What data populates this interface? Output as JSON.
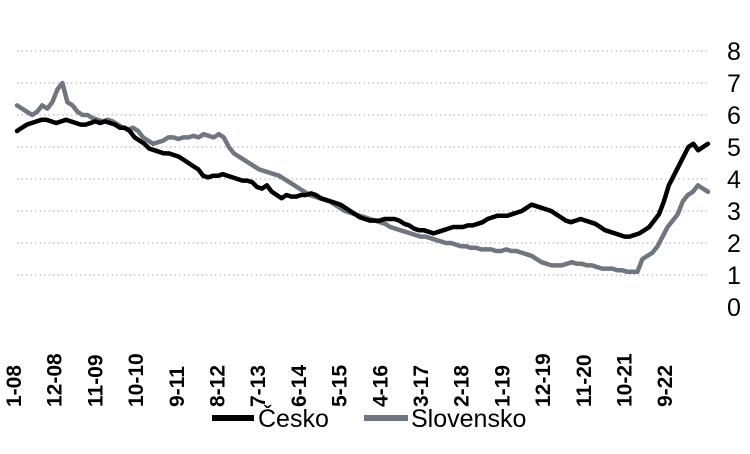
{
  "chart_data": {
    "type": "line",
    "ylim": [
      0,
      8
    ],
    "y_ticks": [
      "0",
      "1",
      "2",
      "3",
      "4",
      "5",
      "6",
      "7",
      "8"
    ],
    "x_tick_labels": [
      "1-08",
      "12-08",
      "11-09",
      "10-10",
      "9-11",
      "8-12",
      "7-13",
      "6-14",
      "5-15",
      "4-16",
      "3-17",
      "2-18",
      "1-19",
      "12-19",
      "11-20",
      "10-21",
      "9-22"
    ],
    "y_axis_position": "right",
    "grid": "horizontal dotted",
    "legend_position": "bottom",
    "series": [
      {
        "name": "Česko",
        "color": "#000000",
        "values": [
          5.5,
          5.6,
          5.7,
          5.75,
          5.8,
          5.85,
          5.85,
          5.8,
          5.75,
          5.8,
          5.85,
          5.8,
          5.75,
          5.7,
          5.7,
          5.75,
          5.8,
          5.75,
          5.8,
          5.75,
          5.7,
          5.6,
          5.6,
          5.5,
          5.3,
          5.2,
          5.1,
          4.95,
          4.9,
          4.85,
          4.8,
          4.8,
          4.75,
          4.7,
          4.6,
          4.5,
          4.4,
          4.3,
          4.1,
          4.05,
          4.1,
          4.1,
          4.15,
          4.1,
          4.05,
          4.0,
          3.95,
          3.95,
          3.9,
          3.75,
          3.7,
          3.8,
          3.6,
          3.5,
          3.4,
          3.5,
          3.45,
          3.45,
          3.5,
          3.5,
          3.55,
          3.5,
          3.4,
          3.35,
          3.3,
          3.25,
          3.2,
          3.1,
          3.0,
          2.9,
          2.8,
          2.75,
          2.7,
          2.7,
          2.7,
          2.75,
          2.75,
          2.75,
          2.7,
          2.6,
          2.55,
          2.45,
          2.4,
          2.4,
          2.35,
          2.3,
          2.35,
          2.4,
          2.45,
          2.5,
          2.5,
          2.5,
          2.55,
          2.55,
          2.6,
          2.65,
          2.75,
          2.8,
          2.85,
          2.85,
          2.85,
          2.9,
          2.95,
          3.0,
          3.1,
          3.2,
          3.15,
          3.1,
          3.05,
          3.0,
          2.9,
          2.8,
          2.7,
          2.65,
          2.7,
          2.75,
          2.7,
          2.65,
          2.6,
          2.5,
          2.4,
          2.35,
          2.3,
          2.25,
          2.2,
          2.2,
          2.25,
          2.3,
          2.4,
          2.5,
          2.7,
          2.9,
          3.3,
          3.8,
          4.1,
          4.4,
          4.7,
          5.0,
          5.1,
          4.9,
          5.0,
          5.1
        ]
      },
      {
        "name": "Slovensko",
        "color": "#707680",
        "values": [
          6.3,
          6.2,
          6.1,
          6.0,
          6.1,
          6.3,
          6.2,
          6.4,
          6.8,
          7.0,
          6.4,
          6.3,
          6.1,
          6.0,
          6.0,
          5.9,
          5.85,
          5.8,
          5.85,
          5.8,
          5.7,
          5.6,
          5.55,
          5.6,
          5.5,
          5.3,
          5.2,
          5.1,
          5.15,
          5.2,
          5.3,
          5.3,
          5.25,
          5.3,
          5.3,
          5.35,
          5.3,
          5.4,
          5.35,
          5.3,
          5.4,
          5.3,
          5.0,
          4.8,
          4.7,
          4.6,
          4.5,
          4.4,
          4.3,
          4.25,
          4.2,
          4.15,
          4.1,
          4.0,
          3.9,
          3.8,
          3.7,
          3.6,
          3.5,
          3.45,
          3.4,
          3.35,
          3.3,
          3.2,
          3.1,
          3.0,
          2.95,
          2.9,
          2.85,
          2.8,
          2.75,
          2.7,
          2.65,
          2.6,
          2.5,
          2.45,
          2.4,
          2.35,
          2.3,
          2.25,
          2.2,
          2.2,
          2.15,
          2.1,
          2.05,
          2.0,
          2.0,
          1.95,
          1.9,
          1.9,
          1.85,
          1.85,
          1.8,
          1.8,
          1.8,
          1.75,
          1.75,
          1.8,
          1.75,
          1.75,
          1.7,
          1.65,
          1.6,
          1.5,
          1.4,
          1.35,
          1.3,
          1.3,
          1.3,
          1.35,
          1.4,
          1.35,
          1.35,
          1.3,
          1.3,
          1.25,
          1.2,
          1.2,
          1.2,
          1.15,
          1.15,
          1.1,
          1.1,
          1.1,
          1.5,
          1.6,
          1.7,
          1.9,
          2.2,
          2.5,
          2.7,
          2.9,
          3.3,
          3.5,
          3.6,
          3.8,
          3.7,
          3.6
        ]
      }
    ]
  }
}
